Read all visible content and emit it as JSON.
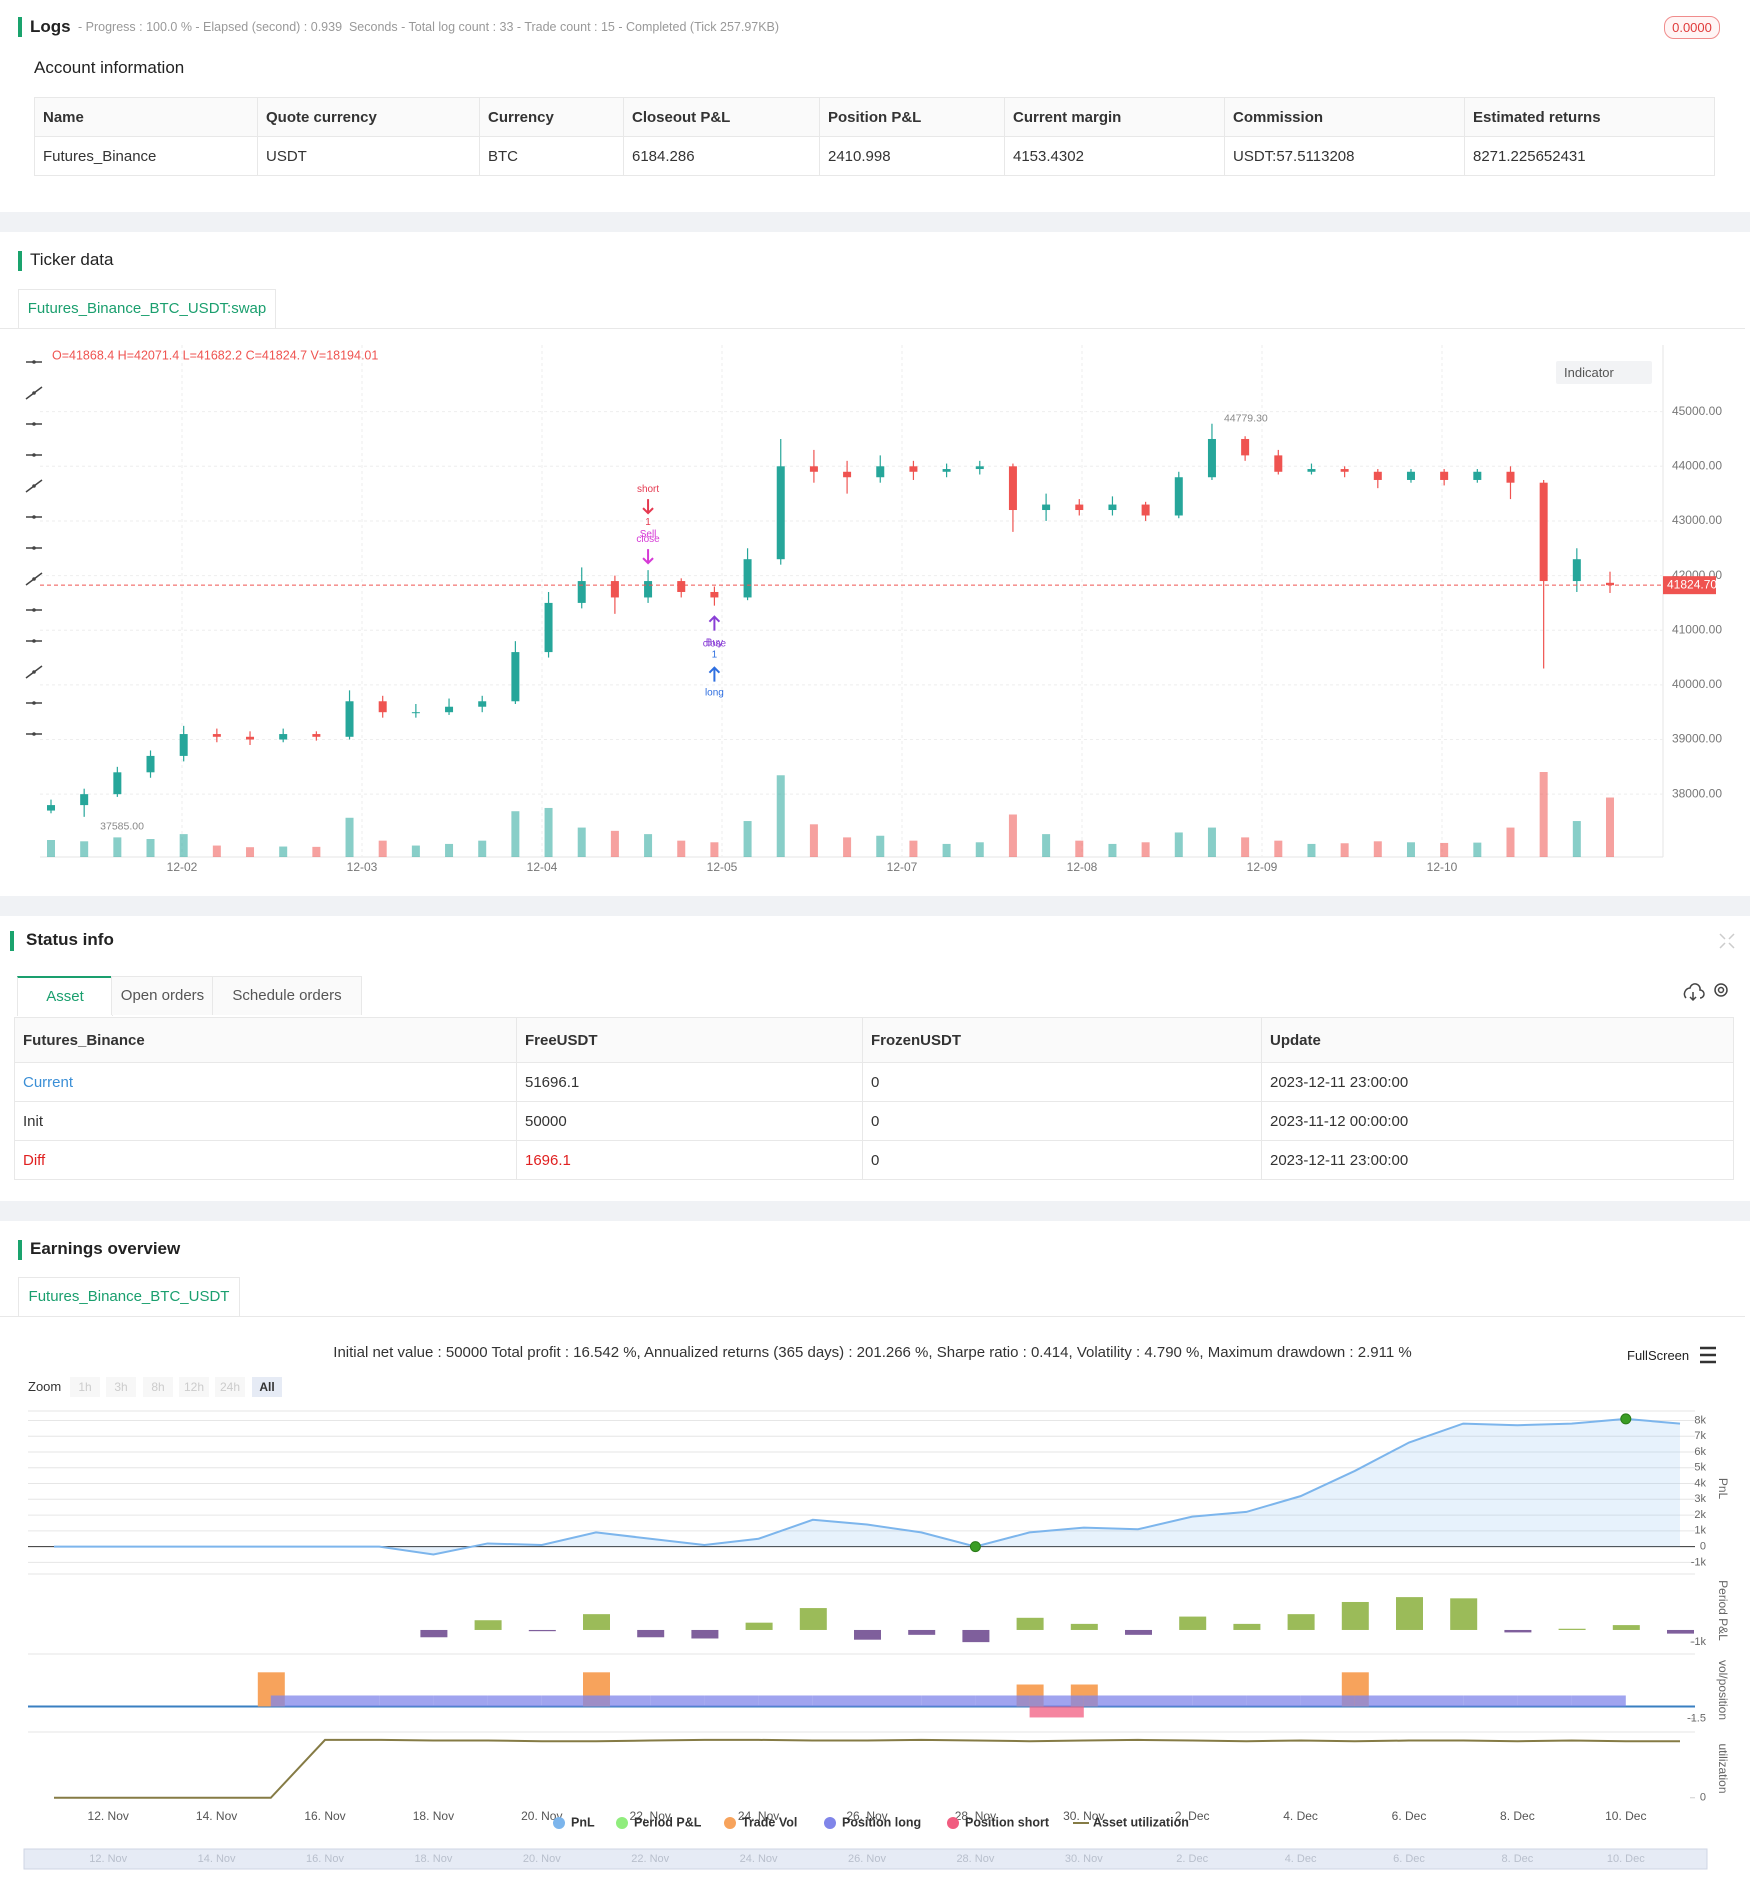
{
  "logs": {
    "title": "Logs",
    "summary": "- Progress : 100.0 % - Elapsed (second) : 0.939  Seconds - Total log count : 33 - Trade count : 15 - Completed (Tick 257.97KB)",
    "badge": "0.0000"
  },
  "account": {
    "title": "Account information",
    "columns": [
      "Name",
      "Quote currency",
      "Currency",
      "Closeout P&L",
      "Position P&L",
      "Current margin",
      "Commission",
      "Estimated returns"
    ],
    "rows": [
      [
        "Futures_Binance",
        "USDT",
        "BTC",
        "6184.286",
        "2410.998",
        "4153.4302",
        "USDT:57.5113208",
        "8271.225652431"
      ]
    ]
  },
  "ticker": {
    "title": "Ticker data",
    "tab": "Futures_Binance_BTC_USDT:swap",
    "indicator": "Indicator"
  },
  "status": {
    "title": "Status info",
    "tabs": [
      "Asset",
      "Open orders",
      "Schedule orders"
    ],
    "active_tab": 0,
    "table": {
      "columns": [
        "Futures_Binance",
        "FreeUSDT",
        "FrozenUSDT",
        "Update"
      ],
      "rows": [
        [
          "Current",
          "51696.1",
          "0",
          "2023-12-11 23:00:00"
        ],
        [
          "Init",
          "50000",
          "0",
          "2023-11-12 00:00:00"
        ],
        [
          "Diff",
          "1696.1",
          "0",
          "2023-12-11 23:00:00"
        ]
      ]
    }
  },
  "earnings": {
    "title": "Earnings overview",
    "tab": "Futures_Binance_BTC_USDT",
    "summary": "Initial net value : 50000 Total profit : 16.542 %, Annualized returns (365 days) : 201.266 %, Sharpe ratio : 0.414, Volatility : 4.790 %, Maximum drawdown : 2.911 %",
    "fullscreen": "FullScreen",
    "zoom": {
      "label": "Zoom",
      "buttons": [
        "1h",
        "3h",
        "8h",
        "12h",
        "24h",
        "All"
      ],
      "active": "All"
    }
  },
  "chart_data": [
    {
      "type": "candlestick",
      "info": "O=41868.4 H=42071.4 L=41682.2 C=41824.7 V=18194.01",
      "up_color": "#26a69a",
      "down_color": "#ef5350",
      "ylim": [
        36850,
        46220
      ],
      "yticks": [
        {
          "value": 38000,
          "label": "38000.00"
        },
        {
          "value": 39000,
          "label": "39000.00"
        },
        {
          "value": 40000,
          "label": "40000.00"
        },
        {
          "value": 41000,
          "label": "41000.00"
        },
        {
          "value": 42000,
          "label": "42000.00"
        },
        {
          "value": 43000,
          "label": "43000.00"
        },
        {
          "value": 44000,
          "label": "44000.00"
        },
        {
          "value": 45000,
          "label": "45000.00"
        }
      ],
      "dates": [
        "12-02",
        "12-03",
        "12-04",
        "12-05",
        "12-07",
        "12-08",
        "12-09",
        "12-10"
      ],
      "ohlc": [
        [
          37700,
          37900,
          37650,
          37800
        ],
        [
          37800,
          38100,
          37585,
          38000
        ],
        [
          38000,
          38500,
          37950,
          38400
        ],
        [
          38400,
          38800,
          38300,
          38700
        ],
        [
          38700,
          39250,
          38600,
          39100
        ],
        [
          39100,
          39200,
          38950,
          39050
        ],
        [
          39050,
          39150,
          38900,
          39000
        ],
        [
          39000,
          39200,
          38950,
          39100
        ],
        [
          39100,
          39150,
          38980,
          39050
        ],
        [
          39050,
          39900,
          39000,
          39700
        ],
        [
          39700,
          39800,
          39400,
          39500
        ],
        [
          39500,
          39650,
          39400,
          39500
        ],
        [
          39500,
          39750,
          39450,
          39600
        ],
        [
          39600,
          39800,
          39500,
          39700
        ],
        [
          39700,
          40800,
          39650,
          40600
        ],
        [
          40600,
          41700,
          40500,
          41500
        ],
        [
          41500,
          42150,
          41400,
          41900
        ],
        [
          41900,
          42000,
          41300,
          41600
        ],
        [
          41600,
          42100,
          41500,
          41900
        ],
        [
          41900,
          41950,
          41600,
          41700
        ],
        [
          41700,
          41800,
          41450,
          41600
        ],
        [
          41600,
          42500,
          41550,
          42300
        ],
        [
          42300,
          44500,
          42200,
          44000
        ],
        [
          44000,
          44300,
          43700,
          43900
        ],
        [
          43900,
          44100,
          43500,
          43800
        ],
        [
          43800,
          44200,
          43700,
          44000
        ],
        [
          44000,
          44100,
          43750,
          43900
        ],
        [
          43900,
          44050,
          43800,
          43950
        ],
        [
          43950,
          44100,
          43850,
          44000
        ],
        [
          44000,
          44050,
          42800,
          43200
        ],
        [
          43200,
          43500,
          43000,
          43300
        ],
        [
          43300,
          43400,
          43100,
          43200
        ],
        [
          43200,
          43450,
          43100,
          43300
        ],
        [
          43300,
          43350,
          43000,
          43100
        ],
        [
          43100,
          43900,
          43050,
          43800
        ],
        [
          43800,
          44779.3,
          43750,
          44500
        ],
        [
          44500,
          44550,
          44100,
          44200
        ],
        [
          44200,
          44300,
          43850,
          43900
        ],
        [
          43900,
          44050,
          43850,
          43950
        ],
        [
          43950,
          44000,
          43800,
          43900
        ],
        [
          43900,
          43950,
          43600,
          43750
        ],
        [
          43750,
          43950,
          43700,
          43900
        ],
        [
          43900,
          43950,
          43650,
          43750
        ],
        [
          43750,
          43950,
          43700,
          43900
        ],
        [
          43900,
          44000,
          43400,
          43700
        ],
        [
          43700,
          43750,
          40300,
          41900
        ],
        [
          41900,
          42500,
          41700,
          42300
        ],
        [
          41868.4,
          42071.4,
          41682.2,
          41824.7
        ]
      ],
      "volume": [
        5200,
        4800,
        6000,
        5500,
        7000,
        3500,
        3000,
        3200,
        3100,
        12000,
        5000,
        3500,
        4000,
        5000,
        14000,
        15000,
        9000,
        8000,
        7000,
        5000,
        4500,
        11000,
        25000,
        10000,
        6000,
        6500,
        5000,
        4000,
        4500,
        13000,
        7000,
        5000,
        4000,
        4500,
        7500,
        9000,
        6000,
        5000,
        4000,
        4200,
        4800,
        4500,
        4300,
        4400,
        9000,
        26000,
        11000,
        18194.01
      ],
      "last_price": {
        "value": 41824.7,
        "label": "41824.70"
      },
      "high": {
        "value": 44779.3,
        "label": "44779.30"
      },
      "low": {
        "value": 37585,
        "label": "37585.00"
      },
      "annotations": [
        {
          "text": "short",
          "sub": "1",
          "candle": 18,
          "dir": "down",
          "color": "#e53950"
        },
        {
          "text": "Sell",
          "sub": "close",
          "candle": 18,
          "dir": "down",
          "color": "#d63ad6"
        },
        {
          "text": "Buy",
          "sub": "close",
          "candle": 20,
          "dir": "up",
          "color": "#8a3fd6"
        },
        {
          "text": "long",
          "sub": "1",
          "candle": 20,
          "dir": "up",
          "color": "#2f6fe0"
        }
      ]
    },
    {
      "type": "panels",
      "categories": [
        null,
        "12. Nov",
        null,
        "14. Nov",
        null,
        "16. Nov",
        null,
        "18. Nov",
        null,
        "20. Nov",
        null,
        "22. Nov",
        null,
        "24. Nov",
        null,
        "26. Nov",
        null,
        "28. Nov",
        null,
        "30. Nov",
        null,
        "2. Dec",
        null,
        "4. Dec",
        null,
        "6. Dec",
        null,
        "8. Dec",
        null,
        "10. Dec",
        null
      ],
      "panels": [
        {
          "axis_label": "PnL",
          "ylim": [
            -1230,
            8600
          ],
          "yticks": [
            {
              "value": -1000,
              "label": "-1k"
            },
            0,
            {
              "value": 1000,
              "label": "1k"
            },
            {
              "value": 2000,
              "label": "2k"
            },
            {
              "value": 3000,
              "label": "3k"
            },
            {
              "value": 4000,
              "label": "4k"
            },
            {
              "value": 5000,
              "label": "5k"
            },
            {
              "value": 6000,
              "label": "6k"
            },
            {
              "value": 7000,
              "label": "7k"
            },
            {
              "value": 8000,
              "label": "8k"
            }
          ]
        },
        {
          "axis_label": "Period P&L",
          "ylim": [
            -1400,
            4600
          ],
          "yticks": [
            {
              "value": -1000,
              "label": "-1k"
            }
          ]
        },
        {
          "axis_label": "vol/position",
          "ylim": [
            -2.4,
            6.45
          ],
          "yticks": [
            -1.5
          ]
        },
        {
          "axis_label": "utilization",
          "ylim": [
            -0.11,
            1
          ],
          "yticks": [
            0
          ]
        }
      ],
      "series": [
        {
          "name": "PnL",
          "color": "#7cb5ec",
          "type": "area",
          "panel": 0,
          "marked_points": [
            17,
            29
          ],
          "values": [
            0,
            0,
            0,
            0,
            0,
            0,
            0,
            -500,
            200,
            100,
            900,
            500,
            100,
            500,
            1700,
            1400,
            900,
            0,
            900,
            1200,
            1100,
            1900,
            2200,
            3200,
            4800,
            6600,
            7800,
            7700,
            7800,
            8100,
            7800
          ]
        },
        {
          "name": "Period P&L",
          "color": "#90ed7d",
          "type": "bar",
          "panel": 1,
          "positive_color": "#9bbb59",
          "negative_color": "#7f5f9c",
          "values": [
            null,
            null,
            null,
            null,
            null,
            null,
            null,
            -600,
            800,
            -100,
            1300,
            -600,
            -700,
            600,
            1800,
            -800,
            -400,
            -1000,
            1000,
            500,
            -400,
            1100,
            500,
            1300,
            2300,
            2700,
            2600,
            -200,
            100,
            400,
            -300
          ]
        },
        {
          "name": "Trade Vol",
          "color": "#f7a35c",
          "type": "bar",
          "panel": 2,
          "values": [
            null,
            null,
            null,
            null,
            4.2,
            null,
            null,
            null,
            null,
            null,
            4.2,
            null,
            null,
            null,
            null,
            null,
            null,
            null,
            2.7,
            2.7,
            null,
            null,
            null,
            null,
            4.2,
            null,
            null,
            null,
            null,
            null,
            null
          ]
        },
        {
          "name": "Position long",
          "color": "#8085e9",
          "type": "step",
          "panel": 2,
          "values": [
            null,
            null,
            null,
            null,
            1.35,
            1.35,
            1.35,
            1.35,
            1.35,
            1.35,
            1.35,
            1.35,
            1.35,
            1.35,
            1.35,
            1.35,
            1.35,
            1.35,
            1.35,
            1.35,
            1.35,
            1.35,
            1.35,
            1.35,
            1.35,
            1.35,
            1.35,
            1.35,
            1.35,
            null,
            null
          ]
        },
        {
          "name": "Position short",
          "color": "#f15c80",
          "type": "step",
          "panel": 2,
          "values": [
            null,
            null,
            null,
            null,
            null,
            null,
            null,
            null,
            null,
            null,
            null,
            null,
            null,
            null,
            null,
            null,
            null,
            null,
            -1.35,
            null,
            null,
            null,
            null,
            null,
            null,
            null,
            null,
            null,
            null,
            null,
            null
          ]
        },
        {
          "name": "Asset utilization",
          "color": "#857b45",
          "type": "line",
          "panel": 3,
          "values": [
            0,
            0,
            0,
            0,
            0,
            0.88,
            0.88,
            0.87,
            0.87,
            0.86,
            0.86,
            0.87,
            0.88,
            0.88,
            0.87,
            0.87,
            0.88,
            0.87,
            0.86,
            0.87,
            0.88,
            0.87,
            0.86,
            0.87,
            0.86,
            0.87,
            0.87,
            0.86,
            0.87,
            0.86,
            0.86
          ]
        }
      ]
    }
  ]
}
